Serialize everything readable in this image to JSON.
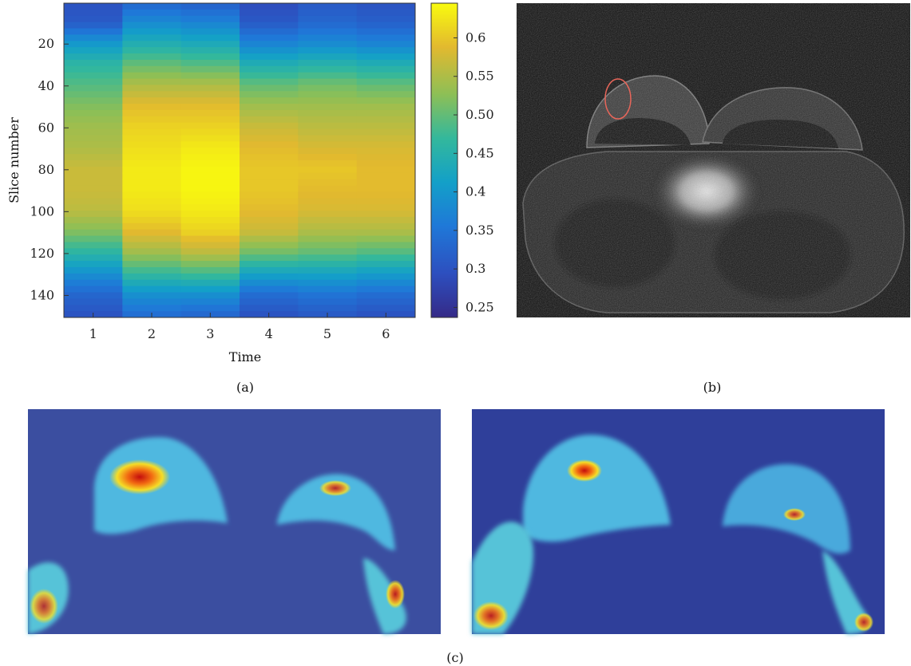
{
  "chart_data": [
    {
      "panel": "(a)",
      "type": "heatmap",
      "title": "",
      "xlabel": "Time",
      "ylabel": "Slice number",
      "x": [
        1,
        2,
        3,
        4,
        5,
        6
      ],
      "xlim": [
        0.5,
        6.5
      ],
      "ylim": [
        150,
        1
      ],
      "y_ticks": [
        20,
        40,
        60,
        80,
        100,
        120,
        140
      ],
      "x_ticks": [
        1,
        2,
        3,
        4,
        5,
        6
      ],
      "colorbar_ticks": [
        "0.25",
        "0.3",
        "0.35",
        "0.4",
        "0.45",
        "0.50",
        "0.55",
        "0.6"
      ],
      "clim": [
        0.237,
        0.645
      ],
      "colormap": "parula",
      "profile": {
        "slice_number": [
          1,
          10,
          20,
          30,
          40,
          50,
          60,
          70,
          80,
          90,
          100,
          110,
          120,
          130,
          140,
          150
        ],
        "column_values": [
          {
            "time": 1,
            "values": [
              0.3,
              0.31,
              0.4,
              0.46,
              0.49,
              0.52,
              0.54,
              0.55,
              0.57,
              0.57,
              0.56,
              0.52,
              0.46,
              0.39,
              0.33,
              0.3
            ]
          },
          {
            "time": 2,
            "values": [
              0.33,
              0.38,
              0.44,
              0.5,
              0.55,
              0.59,
              0.61,
              0.62,
              0.63,
              0.63,
              0.62,
              0.59,
              0.54,
              0.47,
              0.39,
              0.34
            ]
          },
          {
            "time": 3,
            "values": [
              0.32,
              0.37,
              0.43,
              0.49,
              0.55,
              0.59,
              0.61,
              0.63,
              0.64,
              0.64,
              0.63,
              0.61,
              0.56,
              0.48,
              0.39,
              0.33
            ]
          },
          {
            "time": 4,
            "values": [
              0.29,
              0.31,
              0.37,
              0.44,
              0.5,
              0.54,
              0.57,
              0.59,
              0.6,
              0.6,
              0.59,
              0.57,
              0.51,
              0.42,
              0.34,
              0.3
            ]
          },
          {
            "time": 5,
            "values": [
              0.31,
              0.33,
              0.38,
              0.45,
              0.51,
              0.54,
              0.56,
              0.58,
              0.6,
              0.59,
              0.58,
              0.55,
              0.5,
              0.42,
              0.35,
              0.31
            ]
          },
          {
            "time": 6,
            "values": [
              0.3,
              0.32,
              0.37,
              0.44,
              0.5,
              0.54,
              0.56,
              0.58,
              0.59,
              0.59,
              0.58,
              0.55,
              0.49,
              0.41,
              0.34,
              0.3
            ]
          }
        ]
      }
    }
  ],
  "panels": {
    "a_label": "(a)",
    "b_label": "(b)",
    "c_label": "(c)"
  },
  "images": {
    "b": {
      "description_type": "mri-axial-breast",
      "roi_color": "#e8665a"
    },
    "c_left": {
      "colormap": "jet-like"
    },
    "c_right": {
      "colormap": "jet-like"
    }
  }
}
